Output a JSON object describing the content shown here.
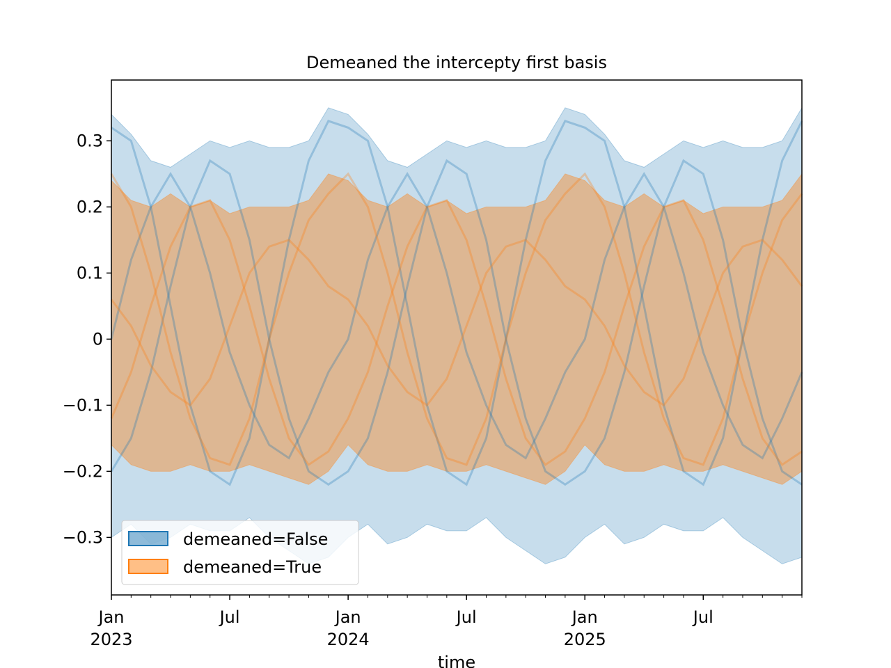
{
  "chart_data": {
    "type": "band",
    "title": "Demeaned the intercepty first basis",
    "xlabel": "time",
    "x": [
      "2023-01",
      "2023-02",
      "2023-03",
      "2023-04",
      "2023-05",
      "2023-06",
      "2023-07",
      "2023-08",
      "2023-09",
      "2023-10",
      "2023-11",
      "2023-12",
      "2024-01",
      "2024-02",
      "2024-03",
      "2024-04",
      "2024-05",
      "2024-06",
      "2024-07",
      "2024-08",
      "2024-09",
      "2024-10",
      "2024-11",
      "2024-12",
      "2025-01",
      "2025-02",
      "2025-03",
      "2025-04",
      "2025-05",
      "2025-06",
      "2025-07",
      "2025-08",
      "2025-09",
      "2025-10",
      "2025-11",
      "2025-12"
    ],
    "xlim": [
      "2023-01",
      "2025-12"
    ],
    "xticks": [
      {
        "value": "2023-01",
        "label": "Jan\n2023"
      },
      {
        "value": "2023-07",
        "label": "Jul"
      },
      {
        "value": "2024-01",
        "label": "Jan\n2024"
      },
      {
        "value": "2024-07",
        "label": "Jul"
      },
      {
        "value": "2025-01",
        "label": "Jan\n2025"
      },
      {
        "value": "2025-07",
        "label": "Jul"
      }
    ],
    "ylim": [
      -0.387,
      0.392
    ],
    "yticks": [
      {
        "value": -0.3,
        "label": "−0.3"
      },
      {
        "value": -0.2,
        "label": "−0.2"
      },
      {
        "value": -0.1,
        "label": "−0.1"
      },
      0.0,
      0.1,
      0.2,
      0.3
    ],
    "legend": "lower left",
    "series": [
      {
        "name": "demeaned=False",
        "color": "#1f77b4",
        "upper": [
          0.34,
          0.31,
          0.27,
          0.26,
          0.28,
          0.3,
          0.29,
          0.3,
          0.29,
          0.29,
          0.3,
          0.35,
          0.34,
          0.31,
          0.27,
          0.26,
          0.28,
          0.3,
          0.29,
          0.3,
          0.29,
          0.29,
          0.3,
          0.35,
          0.34,
          0.31,
          0.27,
          0.26,
          0.28,
          0.3,
          0.29,
          0.3,
          0.29,
          0.29,
          0.3,
          0.35
        ],
        "lower": [
          -0.3,
          -0.28,
          -0.31,
          -0.3,
          -0.28,
          -0.29,
          -0.29,
          -0.27,
          -0.3,
          -0.32,
          -0.34,
          -0.33,
          -0.3,
          -0.28,
          -0.31,
          -0.3,
          -0.28,
          -0.29,
          -0.29,
          -0.27,
          -0.3,
          -0.32,
          -0.34,
          -0.33,
          -0.3,
          -0.28,
          -0.31,
          -0.3,
          -0.28,
          -0.29,
          -0.29,
          -0.27,
          -0.3,
          -0.32,
          -0.34,
          -0.33
        ]
      },
      {
        "name": "demeaned=True",
        "color": "#ff7f0e",
        "upper": [
          0.24,
          0.21,
          0.2,
          0.22,
          0.2,
          0.21,
          0.19,
          0.2,
          0.2,
          0.2,
          0.21,
          0.25,
          0.24,
          0.21,
          0.2,
          0.22,
          0.2,
          0.21,
          0.19,
          0.2,
          0.2,
          0.2,
          0.21,
          0.25,
          0.24,
          0.21,
          0.2,
          0.22,
          0.2,
          0.21,
          0.19,
          0.2,
          0.2,
          0.2,
          0.21,
          0.25
        ],
        "lower": [
          -0.16,
          -0.19,
          -0.2,
          -0.2,
          -0.19,
          -0.2,
          -0.2,
          -0.19,
          -0.2,
          -0.21,
          -0.22,
          -0.2,
          -0.16,
          -0.19,
          -0.2,
          -0.2,
          -0.19,
          -0.2,
          -0.2,
          -0.19,
          -0.2,
          -0.21,
          -0.22,
          -0.2,
          -0.16,
          -0.19,
          -0.2,
          -0.2,
          -0.19,
          -0.2,
          -0.2,
          -0.19,
          -0.2,
          -0.21,
          -0.22,
          -0.2
        ]
      }
    ],
    "lines": [
      {
        "color": "#1f77b4",
        "values": [
          0.32,
          0.3,
          0.2,
          0.05,
          -0.1,
          -0.2,
          -0.22,
          -0.15,
          0.0,
          0.15,
          0.27,
          0.33,
          0.32,
          0.3,
          0.2,
          0.05,
          -0.1,
          -0.2,
          -0.22,
          -0.15,
          0.0,
          0.15,
          0.27,
          0.33,
          0.32,
          0.3,
          0.2,
          0.05,
          -0.1,
          -0.2,
          -0.22,
          -0.15,
          0.0,
          0.15,
          0.27,
          0.33
        ]
      },
      {
        "color": "#1f77b4",
        "values": [
          -0.2,
          -0.15,
          -0.05,
          0.08,
          0.2,
          0.27,
          0.25,
          0.15,
          0.0,
          -0.12,
          -0.2,
          -0.22,
          -0.2,
          -0.15,
          -0.05,
          0.08,
          0.2,
          0.27,
          0.25,
          0.15,
          0.0,
          -0.12,
          -0.2,
          -0.22,
          -0.2,
          -0.15,
          -0.05,
          0.08,
          0.2,
          0.27,
          0.25,
          0.15,
          0.0,
          -0.12,
          -0.2,
          -0.22
        ]
      },
      {
        "color": "#1f77b4",
        "values": [
          0.0,
          0.12,
          0.2,
          0.25,
          0.2,
          0.1,
          -0.02,
          -0.1,
          -0.16,
          -0.18,
          -0.12,
          -0.05,
          0.0,
          0.12,
          0.2,
          0.25,
          0.2,
          0.1,
          -0.02,
          -0.1,
          -0.16,
          -0.18,
          -0.12,
          -0.05,
          0.0,
          0.12,
          0.2,
          0.25,
          0.2,
          0.1,
          -0.02,
          -0.1,
          -0.16,
          -0.18,
          -0.12,
          -0.05
        ]
      },
      {
        "color": "#ff7f0e",
        "values": [
          0.25,
          0.2,
          0.1,
          -0.02,
          -0.12,
          -0.18,
          -0.19,
          -0.12,
          0.0,
          0.1,
          0.18,
          0.22,
          0.25,
          0.2,
          0.1,
          -0.02,
          -0.12,
          -0.18,
          -0.19,
          -0.12,
          0.0,
          0.1,
          0.18,
          0.22,
          0.25,
          0.2,
          0.1,
          -0.02,
          -0.12,
          -0.18,
          -0.19,
          -0.12,
          0.0,
          0.1,
          0.18,
          0.22
        ]
      },
      {
        "color": "#ff7f0e",
        "values": [
          -0.12,
          -0.05,
          0.05,
          0.14,
          0.2,
          0.21,
          0.15,
          0.05,
          -0.06,
          -0.15,
          -0.19,
          -0.17,
          -0.12,
          -0.05,
          0.05,
          0.14,
          0.2,
          0.21,
          0.15,
          0.05,
          -0.06,
          -0.15,
          -0.19,
          -0.17,
          -0.12,
          -0.05,
          0.05,
          0.14,
          0.2,
          0.21,
          0.15,
          0.05,
          -0.06,
          -0.15,
          -0.19,
          -0.17
        ]
      },
      {
        "color": "#ff7f0e",
        "values": [
          0.06,
          0.02,
          -0.04,
          -0.08,
          -0.1,
          -0.06,
          0.02,
          0.1,
          0.14,
          0.15,
          0.12,
          0.08,
          0.06,
          0.02,
          -0.04,
          -0.08,
          -0.1,
          -0.06,
          0.02,
          0.1,
          0.14,
          0.15,
          0.12,
          0.08,
          0.06,
          0.02,
          -0.04,
          -0.08,
          -0.1,
          -0.06,
          0.02,
          0.1,
          0.14,
          0.15,
          0.12,
          0.08
        ]
      }
    ]
  }
}
